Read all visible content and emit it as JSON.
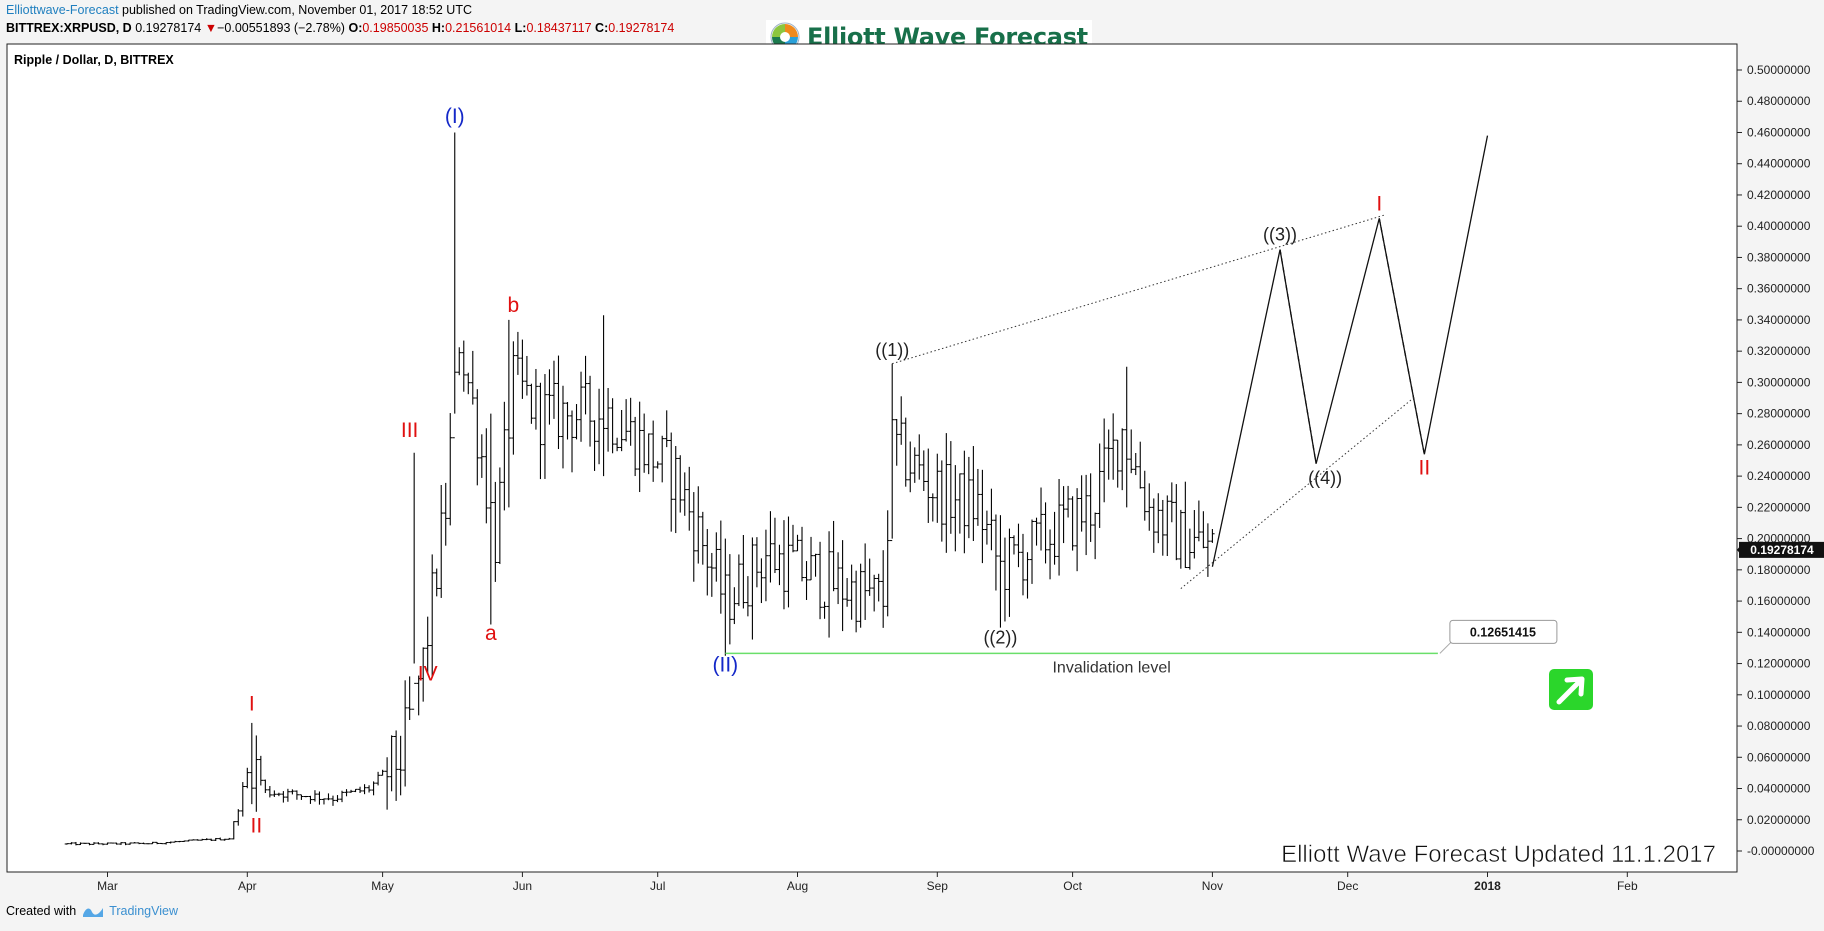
{
  "header": {
    "publisher": "Elliottwave-Forecast",
    "published_text": " published on TradingView.com, November 01, 2017 18:52 UTC",
    "symbol": "BITTREX:XRPUSD, D",
    "last": "0.19278174",
    "change": "−0.00551893 (−2.78%)",
    "o_label": "O:",
    "o_value": "0.19850035",
    "h_label": "H:",
    "h_value": "0.21561014",
    "l_label": "L:",
    "l_value": "0.18437117",
    "c_label": "C:",
    "c_value": "0.19278174",
    "down_icon": "triangle-down-icon"
  },
  "logo": {
    "text": "Elliott Wave Forecast",
    "icon": "ewf-logo-icon"
  },
  "footer": {
    "created_with": "Created with",
    "tradingview": "TradingView",
    "icon": "tradingview-logo-icon"
  },
  "colors": {
    "up_arrow_bg": "#2bd62b",
    "invalidation_line": "#6adf6a",
    "wave_red": "#e01010",
    "wave_blue": "#1428c8"
  },
  "chart_data": {
    "type": "ohlc",
    "title": "Ripple / Dollar, D, BITTREX",
    "watermark": "Elliott Wave Forecast Updated 11.1.2017",
    "ylim": [
      -0.01,
      0.51
    ],
    "y_ticks": [
      "0.50000000",
      "0.48000000",
      "0.46000000",
      "0.44000000",
      "0.42000000",
      "0.40000000",
      "0.38000000",
      "0.36000000",
      "0.34000000",
      "0.32000000",
      "0.30000000",
      "0.28000000",
      "0.26000000",
      "0.24000000",
      "0.22000000",
      "0.20000000",
      "0.18000000",
      "0.16000000",
      "0.14000000",
      "0.12000000",
      "0.10000000",
      "0.08000000",
      "0.06000000",
      "0.04000000",
      "0.02000000",
      "-0.00000000"
    ],
    "x_ticks": [
      {
        "label": "Mar",
        "date": "2017-03-01"
      },
      {
        "label": "Apr",
        "date": "2017-04-01"
      },
      {
        "label": "May",
        "date": "2017-05-01"
      },
      {
        "label": "Jun",
        "date": "2017-06-01"
      },
      {
        "label": "Jul",
        "date": "2017-07-01"
      },
      {
        "label": "Aug",
        "date": "2017-08-01"
      },
      {
        "label": "Sep",
        "date": "2017-09-01"
      },
      {
        "label": "Oct",
        "date": "2017-10-01"
      },
      {
        "label": "Nov",
        "date": "2017-11-01"
      },
      {
        "label": "Dec",
        "date": "2017-12-01"
      },
      {
        "label": "2018",
        "date": "2018-01-01"
      },
      {
        "label": "Feb",
        "date": "2018-02-01"
      }
    ],
    "price_line": {
      "value": 0.19278174,
      "label": "0.19278174"
    },
    "invalidation": {
      "value": 0.12651415,
      "label": "0.12651415",
      "text": "Invalidation level",
      "from": "2017-07-16",
      "to": "2017-12-21"
    },
    "anchors": [
      {
        "date": "2017-02-20",
        "price": 0.0045
      },
      {
        "date": "2017-03-10",
        "price": 0.0048
      },
      {
        "date": "2017-03-28",
        "price": 0.008
      },
      {
        "date": "2017-04-02",
        "price": 0.06
      },
      {
        "date": "2017-04-05",
        "price": 0.038
      },
      {
        "date": "2017-04-20",
        "price": 0.034
      },
      {
        "date": "2017-04-28",
        "price": 0.04
      },
      {
        "date": "2017-05-05",
        "price": 0.06
      },
      {
        "date": "2017-05-10",
        "price": 0.12
      },
      {
        "date": "2017-05-15",
        "price": 0.22
      },
      {
        "date": "2017-05-18",
        "price": 0.33
      },
      {
        "date": "2017-05-22",
        "price": 0.27
      },
      {
        "date": "2017-05-26",
        "price": 0.2
      },
      {
        "date": "2017-05-30",
        "price": 0.3
      },
      {
        "date": "2017-06-05",
        "price": 0.28
      },
      {
        "date": "2017-06-20",
        "price": 0.28
      },
      {
        "date": "2017-07-05",
        "price": 0.24
      },
      {
        "date": "2017-07-16",
        "price": 0.16
      },
      {
        "date": "2017-07-25",
        "price": 0.19
      },
      {
        "date": "2017-08-10",
        "price": 0.17
      },
      {
        "date": "2017-08-20",
        "price": 0.16
      },
      {
        "date": "2017-08-22",
        "price": 0.26
      },
      {
        "date": "2017-09-01",
        "price": 0.23
      },
      {
        "date": "2017-09-10",
        "price": 0.22
      },
      {
        "date": "2017-09-15",
        "price": 0.18
      },
      {
        "date": "2017-09-25",
        "price": 0.2
      },
      {
        "date": "2017-10-05",
        "price": 0.22
      },
      {
        "date": "2017-10-12",
        "price": 0.27
      },
      {
        "date": "2017-10-18",
        "price": 0.22
      },
      {
        "date": "2017-10-25",
        "price": 0.2
      },
      {
        "date": "2017-11-01",
        "price": 0.194
      }
    ],
    "spikes": [
      {
        "date": "2017-04-02",
        "high": 0.082,
        "low": 0.03
      },
      {
        "date": "2017-05-08",
        "high": 0.255,
        "low": 0.12
      },
      {
        "date": "2017-05-17",
        "high": 0.46,
        "low": 0.28
      },
      {
        "date": "2017-05-25",
        "high": 0.28,
        "low": 0.145
      },
      {
        "date": "2017-05-29",
        "high": 0.34,
        "low": 0.22
      },
      {
        "date": "2017-06-19",
        "high": 0.343,
        "low": 0.24
      },
      {
        "date": "2017-07-16",
        "high": 0.2,
        "low": 0.125
      },
      {
        "date": "2017-08-22",
        "high": 0.312,
        "low": 0.2
      },
      {
        "date": "2017-09-15",
        "high": 0.215,
        "low": 0.143
      },
      {
        "date": "2017-10-13",
        "high": 0.31,
        "low": 0.22
      }
    ],
    "projection": {
      "solid": [
        {
          "date": "2017-11-01",
          "price": 0.182
        },
        {
          "date": "2017-11-16",
          "price": 0.385
        },
        {
          "date": "2017-11-24",
          "price": 0.248
        },
        {
          "date": "2017-12-08",
          "price": 0.405
        },
        {
          "date": "2017-12-18",
          "price": 0.254
        },
        {
          "date": "2018-01-01",
          "price": 0.458
        }
      ],
      "dashed": [
        [
          {
            "date": "2017-11-16",
            "price": 0.385
          },
          {
            "date": "2017-11-24",
            "price": 0.248
          }
        ],
        [
          {
            "date": "2017-12-08",
            "price": 0.405
          },
          {
            "date": "2017-12-18",
            "price": 0.254
          }
        ]
      ],
      "channel": [
        [
          {
            "date": "2017-08-22",
            "price": 0.312
          },
          {
            "date": "2017-12-09",
            "price": 0.407
          }
        ],
        [
          {
            "date": "2017-10-25",
            "price": 0.168
          },
          {
            "date": "2017-12-16",
            "price": 0.291
          }
        ]
      ]
    },
    "wave_labels": [
      {
        "text": "(I)",
        "color": "blue",
        "date": "2017-05-17",
        "price": 0.466
      },
      {
        "text": "(II)",
        "color": "blue",
        "date": "2017-07-16",
        "price": 0.115
      },
      {
        "text": "I",
        "color": "red",
        "date": "2017-04-02",
        "price": 0.09
      },
      {
        "text": "II",
        "color": "red",
        "date": "2017-04-03",
        "price": 0.012
      },
      {
        "text": "III",
        "color": "red",
        "date": "2017-05-07",
        "price": 0.265
      },
      {
        "text": "IV",
        "color": "red",
        "date": "2017-05-11",
        "price": 0.109
      },
      {
        "text": "a",
        "color": "red",
        "date": "2017-05-25",
        "price": 0.135
      },
      {
        "text": "b",
        "color": "red",
        "date": "2017-05-30",
        "price": 0.345
      },
      {
        "text": "((1))",
        "color": "dark",
        "date": "2017-08-22",
        "price": 0.317
      },
      {
        "text": "((2))",
        "color": "dark",
        "date": "2017-09-15",
        "price": 0.133
      },
      {
        "text": "((3))",
        "color": "dark",
        "date": "2017-11-16",
        "price": 0.391
      },
      {
        "text": "((4))",
        "color": "dark",
        "date": "2017-11-26",
        "price": 0.235
      },
      {
        "text": "I",
        "color": "red",
        "date": "2017-12-08",
        "price": 0.41
      },
      {
        "text": "II",
        "color": "red",
        "date": "2017-12-18",
        "price": 0.241
      }
    ]
  }
}
